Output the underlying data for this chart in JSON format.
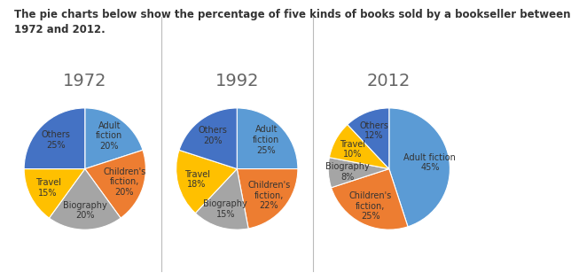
{
  "title": "The pie charts below show the percentage of five kinds of books sold by a bookseller between\n1972 and 2012.",
  "years": [
    "1972",
    "1992",
    "2012"
  ],
  "data": {
    "1972": [
      20,
      20,
      20,
      15,
      25
    ],
    "1992": [
      25,
      22,
      15,
      18,
      20
    ],
    "2012": [
      45,
      25,
      8,
      10,
      12
    ]
  },
  "labels": {
    "1972": [
      "Adult\nfiction\n20%",
      "Children's\nfiction,\n20%",
      "Biography\n20%",
      "Travel\n15%",
      "Others\n25%"
    ],
    "1992": [
      "Adult\nfiction\n25%",
      "Children's\nfiction,\n22%",
      "Biography\n15%",
      "Travel\n18%",
      "Others\n20%"
    ],
    "2012": [
      "Adult fiction\n45%",
      "Children's\nfiction,\n25%",
      "Biography\n8%",
      "Travel\n10%",
      "Others\n12%"
    ]
  },
  "colors": [
    "#5b9bd5",
    "#ed7d31",
    "#a5a5a5",
    "#ffc000",
    "#4472c4"
  ],
  "startangles": {
    "1972": 90,
    "1992": 90,
    "2012": 90
  },
  "divider_color": "#bbbbbb",
  "bg_color": "#ffffff",
  "title_fontsize": 8.5,
  "label_fontsize": 7.0,
  "year_fontsize": 14,
  "text_color": "#333333"
}
